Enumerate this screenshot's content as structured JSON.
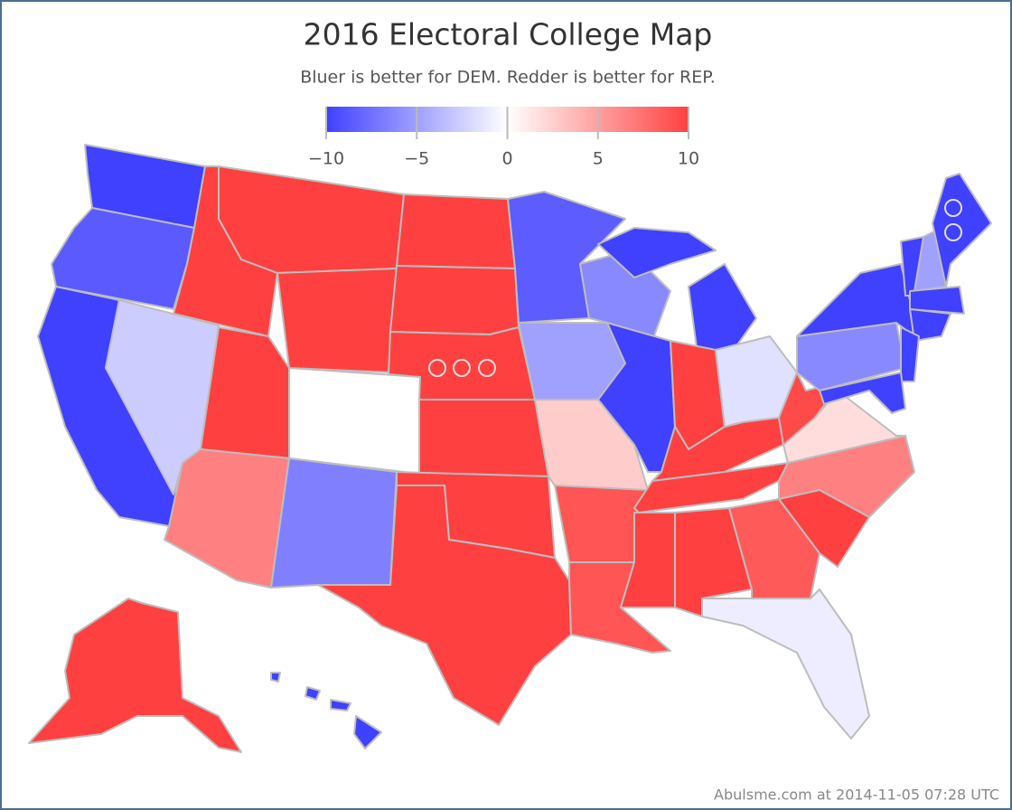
{
  "title": "2016 Electoral College Map",
  "subtitle": "Bluer is better for DEM. Redder is better for REP.",
  "colorbar": {
    "lim": [
      -10,
      10
    ],
    "ticks": [
      {
        "value": -10,
        "label": "−10"
      },
      {
        "value": -5,
        "label": "−5"
      },
      0,
      5,
      10
    ],
    "colors": [
      "#4040ff",
      "#ffffff",
      "#ff4040"
    ]
  },
  "footer": "Abulsme.com at 2014-11-05 07:28 UTC"
}
